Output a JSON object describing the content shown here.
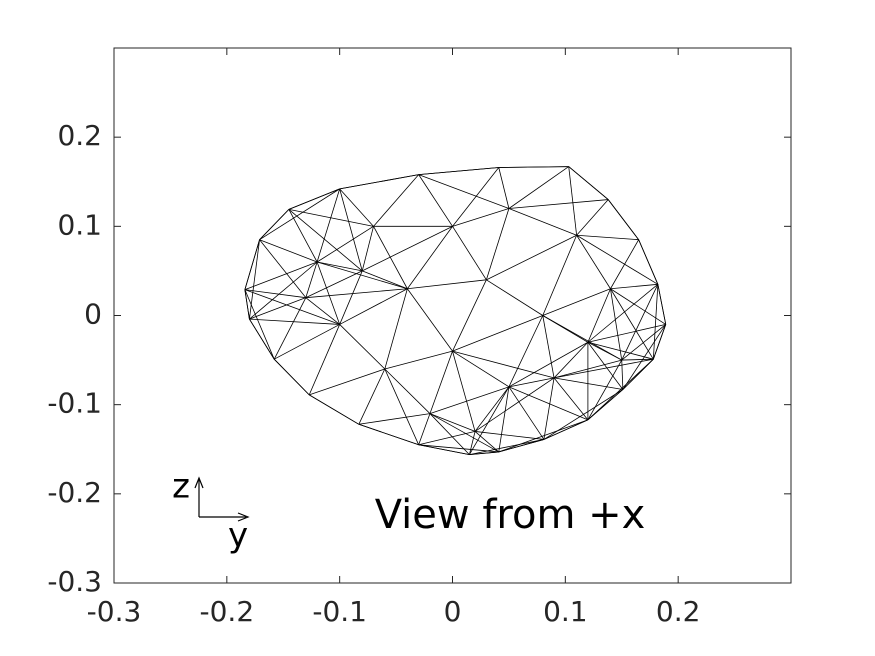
{
  "chart_data": {
    "type": "wireframe",
    "annotation": "View from +x",
    "triad_up_label": "z",
    "triad_right_label": "y",
    "color": "#000000",
    "xlim": [
      -0.3,
      0.3
    ],
    "ylim": [
      -0.3,
      0.3
    ],
    "xticks": [
      -0.3,
      -0.2,
      -0.1,
      0,
      0.1,
      0.2
    ],
    "yticks": [
      -0.3,
      -0.2,
      -0.1,
      0,
      0.1,
      0.2
    ],
    "outline": {
      "x": [
        -0.184,
        -0.171,
        -0.145,
        -0.1,
        -0.03,
        0.041,
        0.103,
        0.138,
        0.165,
        0.182,
        0.189,
        0.178,
        0.151,
        0.12,
        0.081,
        0.041,
        0.015,
        -0.03,
        -0.083,
        -0.127,
        -0.158,
        -0.18
      ],
      "values": [
        0.029,
        0.085,
        0.119,
        0.142,
        0.158,
        0.166,
        0.167,
        0.13,
        0.085,
        0.035,
        -0.01,
        -0.049,
        -0.083,
        -0.117,
        -0.139,
        -0.153,
        -0.156,
        -0.145,
        -0.122,
        -0.089,
        -0.049,
        -0.004
      ]
    },
    "interior": {
      "x": [
        -0.12,
        -0.07,
        0.0,
        0.05,
        0.11,
        0.14,
        -0.1,
        -0.04,
        0.03,
        0.08,
        0.12,
        -0.06,
        0.0,
        0.05,
        0.09,
        -0.02,
        -0.13,
        0.02,
        0.15,
        -0.08
      ],
      "values": [
        0.06,
        0.1,
        0.1,
        0.12,
        0.09,
        0.03,
        -0.01,
        0.03,
        0.04,
        0.0,
        -0.03,
        -0.06,
        -0.04,
        -0.08,
        -0.07,
        -0.11,
        0.02,
        -0.13,
        -0.05,
        0.05
      ]
    }
  }
}
